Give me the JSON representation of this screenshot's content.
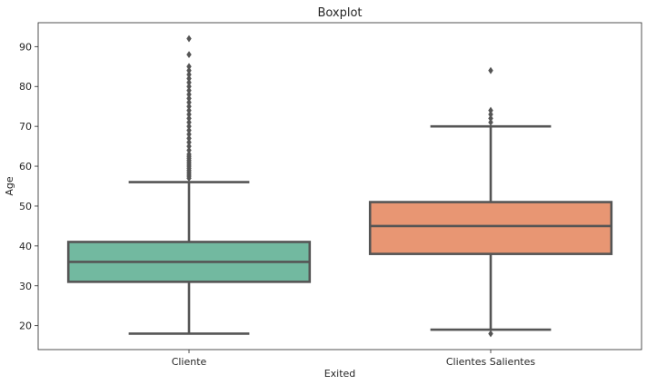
{
  "chart_data": {
    "type": "boxplot",
    "title": "Boxplot",
    "xlabel": "Exited",
    "ylabel": "Age",
    "ylim": [
      14,
      96
    ],
    "yticks": [
      20,
      30,
      40,
      50,
      60,
      70,
      80,
      90
    ],
    "grid": false,
    "categories": [
      "Cliente",
      "Clientes Salientes"
    ],
    "colors": {
      "Cliente": "#72b9a0",
      "Clientes Salientes": "#e89673",
      "edge": "#555555"
    },
    "boxes": [
      {
        "category": "Cliente",
        "whisker_low": 18,
        "q1": 31,
        "median": 36,
        "q3": 41,
        "whisker_high": 56,
        "outliers": [
          57,
          57.5,
          58,
          58.5,
          59,
          59.5,
          60,
          60.5,
          61,
          61.5,
          62,
          62.5,
          63,
          64,
          65,
          66,
          67,
          68,
          69,
          70,
          71,
          72,
          73,
          74,
          75,
          76,
          77,
          78,
          79,
          80,
          81,
          82,
          83,
          84,
          85,
          88,
          92
        ]
      },
      {
        "category": "Clientes Salientes",
        "whisker_low": 19,
        "q1": 38,
        "median": 45,
        "q3": 51,
        "whisker_high": 70,
        "outliers": [
          18,
          71,
          72,
          73,
          74,
          84
        ]
      }
    ]
  }
}
